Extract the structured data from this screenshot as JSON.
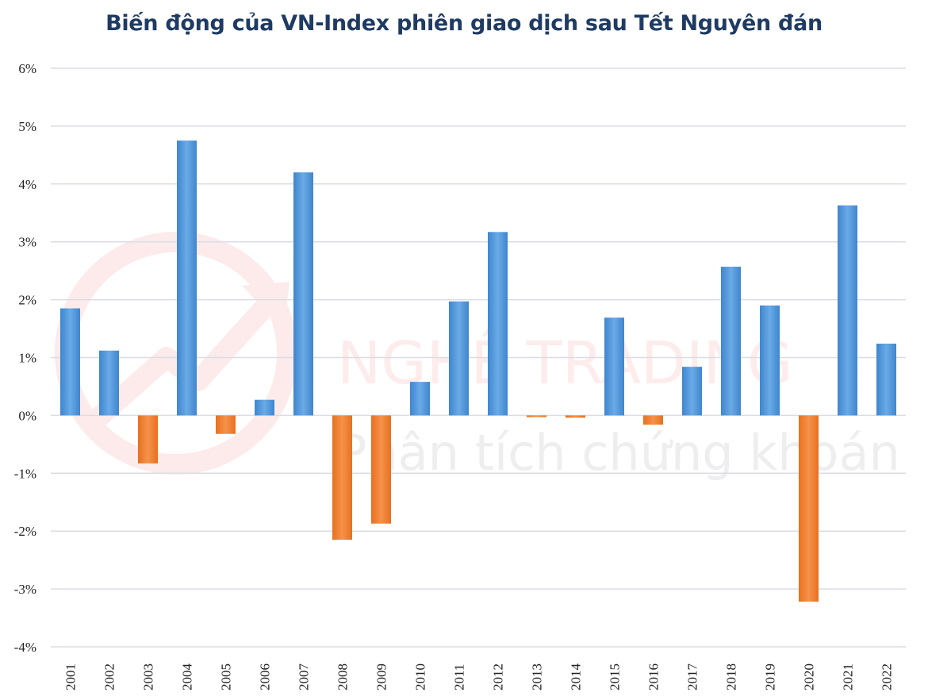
{
  "chart_data": {
    "type": "bar",
    "title": "Biến động của VN-Index phiên giao dịch sau Tết Nguyên đán",
    "xlabel": "",
    "ylabel": "",
    "categories": [
      "2001",
      "2002",
      "2003",
      "2004",
      "2005",
      "2006",
      "2007",
      "2008",
      "2009",
      "2010",
      "2011",
      "2012",
      "2013",
      "2014",
      "2015",
      "2016",
      "2017",
      "2018",
      "2019",
      "2020",
      "2021",
      "2022"
    ],
    "values": [
      1.85,
      1.12,
      -0.83,
      4.75,
      -0.32,
      0.27,
      4.2,
      -2.15,
      -1.87,
      0.58,
      1.97,
      3.17,
      -0.03,
      -0.04,
      1.69,
      -0.16,
      0.84,
      2.57,
      1.9,
      -3.22,
      3.63,
      1.24
    ],
    "yticks": [
      "6%",
      "5%",
      "4%",
      "3%",
      "2%",
      "1%",
      "0%",
      "-1%",
      "-2%",
      "-3%",
      "-4%"
    ],
    "ylim": [
      -4,
      6
    ],
    "grid": true,
    "legend": "none",
    "colors": {
      "positive": "#5b9bd5",
      "negative": "#ed7d31"
    }
  },
  "watermark": {
    "brand": "NGHỀ TRADING",
    "tagline": "Phân tích chứng khoán",
    "color": "#e8433b"
  }
}
